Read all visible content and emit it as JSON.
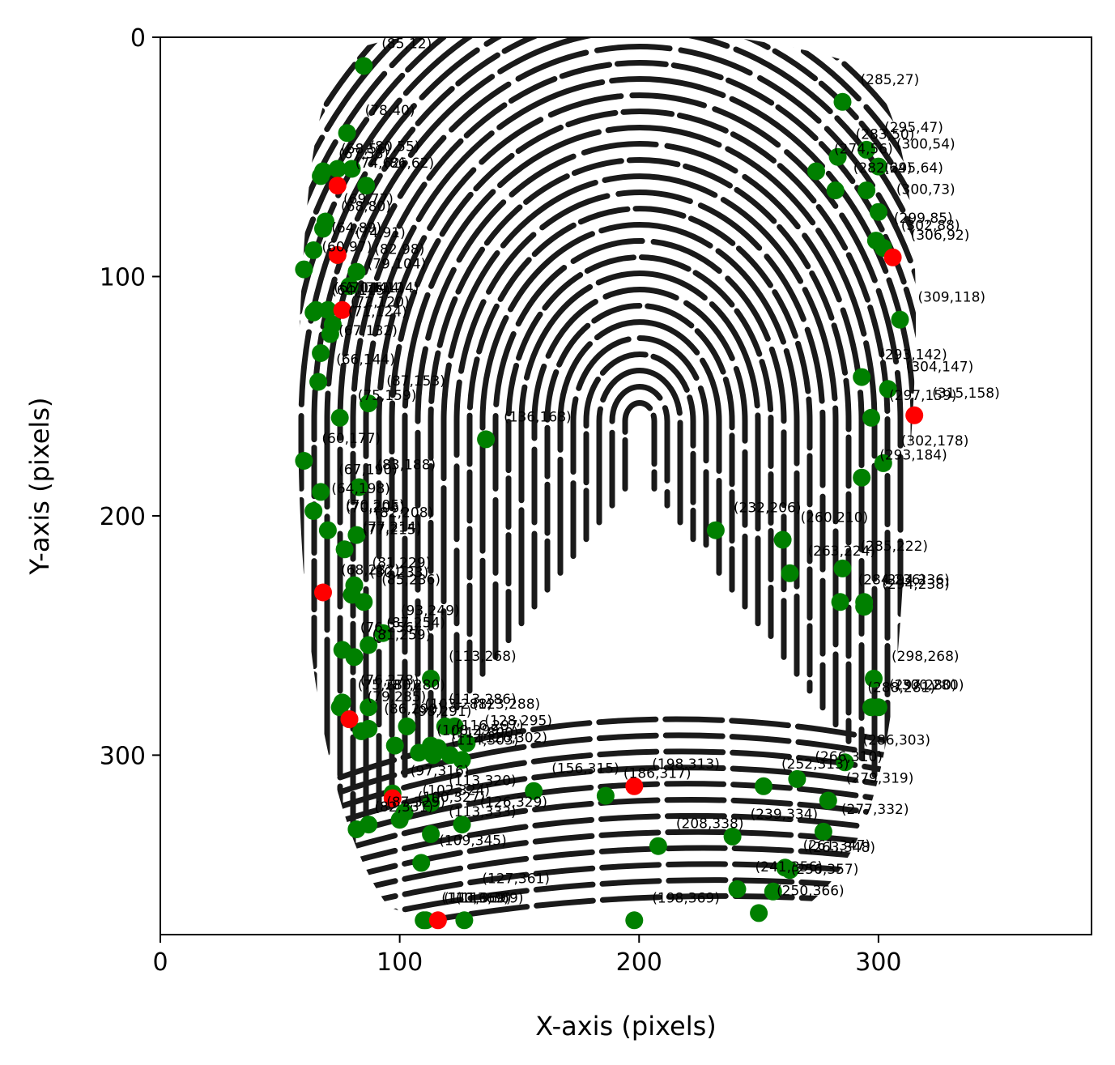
{
  "chart_data": {
    "type": "scatter",
    "title": "",
    "xlabel": "X-axis (pixels)",
    "ylabel": "Y-axis (pixels)",
    "xlim": [
      0,
      389
    ],
    "ylim": [
      375,
      0
    ],
    "y_inverted": true,
    "grid": false,
    "background_image": "fingerprint",
    "x_ticks": [
      0,
      100,
      200,
      300
    ],
    "y_ticks": [
      0,
      100,
      200,
      300
    ],
    "colors": {
      "green": "#008000",
      "red": "#ff0000"
    },
    "series": [
      {
        "color": "green",
        "points": [
          [
            85,
            12
          ],
          [
            285,
            27
          ],
          [
            78,
            40
          ],
          [
            295,
            47
          ],
          [
            283,
            50
          ],
          [
            300,
            54
          ],
          [
            274,
            56
          ],
          [
            80,
            55
          ],
          [
            68,
            56
          ],
          [
            67,
            58
          ],
          [
            74,
            55
          ],
          [
            86,
            62
          ],
          [
            282,
            64
          ],
          [
            295,
            64
          ],
          [
            300,
            73
          ],
          [
            68,
            80
          ],
          [
            69,
            77
          ],
          [
            299,
            85
          ],
          [
            302,
            88
          ],
          [
            64,
            89
          ],
          [
            74,
            91
          ],
          [
            60,
            97
          ],
          [
            82,
            98
          ],
          [
            79,
            104
          ],
          [
            65,
            114
          ],
          [
            64,
            115
          ],
          [
            70,
            114
          ],
          [
            72,
            120
          ],
          [
            71,
            124
          ],
          [
            309,
            118
          ],
          [
            67,
            132
          ],
          [
            66,
            144
          ],
          [
            293,
            142
          ],
          [
            304,
            147
          ],
          [
            297,
            159
          ],
          [
            87,
            153
          ],
          [
            75,
            159
          ],
          [
            136,
            168
          ],
          [
            60,
            177
          ],
          [
            302,
            178
          ],
          [
            293,
            184
          ],
          [
            67,
            190
          ],
          [
            83,
            188
          ],
          [
            64,
            198
          ],
          [
            70,
            206
          ],
          [
            82,
            208
          ],
          [
            77,
            214
          ],
          [
            232,
            206
          ],
          [
            260,
            210
          ],
          [
            263,
            224
          ],
          [
            285,
            222
          ],
          [
            284,
            236
          ],
          [
            294,
            236
          ],
          [
            294,
            238
          ],
          [
            81,
            229
          ],
          [
            80,
            233
          ],
          [
            85,
            236
          ],
          [
            93,
            249
          ],
          [
            76,
            256
          ],
          [
            87,
            254
          ],
          [
            81,
            259
          ],
          [
            113,
            268
          ],
          [
            298,
            268
          ],
          [
            76,
            278
          ],
          [
            75,
            280
          ],
          [
            87,
            280
          ],
          [
            297,
            280
          ],
          [
            300,
            280
          ],
          [
            79,
            285
          ],
          [
            84,
            290
          ],
          [
            87,
            289
          ],
          [
            98,
            296
          ],
          [
            103,
            288
          ],
          [
            113,
            296
          ],
          [
            119,
            288
          ],
          [
            123,
            288
          ],
          [
            128,
            295
          ],
          [
            108,
            299
          ],
          [
            114,
            300
          ],
          [
            116,
            297
          ],
          [
            121,
            300
          ],
          [
            126,
            302
          ],
          [
            286,
            303
          ],
          [
            266,
            310
          ],
          [
            252,
            313
          ],
          [
            279,
            319
          ],
          [
            97,
            316
          ],
          [
            113,
            320
          ],
          [
            156,
            315
          ],
          [
            186,
            317
          ],
          [
            102,
            324
          ],
          [
            100,
            327
          ],
          [
            87,
            329
          ],
          [
            82,
            331
          ],
          [
            113,
            333
          ],
          [
            126,
            329
          ],
          [
            239,
            334
          ],
          [
            277,
            332
          ],
          [
            208,
            338
          ],
          [
            109,
            345
          ],
          [
            261,
            347
          ],
          [
            263,
            348
          ],
          [
            241,
            356
          ],
          [
            256,
            357
          ],
          [
            110,
            369
          ],
          [
            111,
            369
          ],
          [
            127,
            369
          ],
          [
            198,
            369
          ],
          [
            250,
            366
          ]
        ]
      },
      {
        "color": "red",
        "points": [
          [
            74,
            62
          ],
          [
            74,
            91
          ],
          [
            76,
            114
          ],
          [
            306,
            92
          ],
          [
            315,
            158
          ],
          [
            68,
            232
          ],
          [
            79,
            285
          ],
          [
            97,
            318
          ],
          [
            198,
            313
          ],
          [
            116,
            369
          ]
        ]
      }
    ],
    "labels": [
      {
        "x": 85,
        "y": 12,
        "text": "(85,12)"
      },
      {
        "x": 285,
        "y": 27,
        "text": "(285,27)"
      },
      {
        "x": 78,
        "y": 40,
        "text": "(78,40)"
      },
      {
        "x": 295,
        "y": 47,
        "text": "(295,47)"
      },
      {
        "x": 283,
        "y": 50,
        "text": "(283,50)"
      },
      {
        "x": 300,
        "y": 54,
        "text": "(300,54)"
      },
      {
        "x": 274,
        "y": 56,
        "text": "(274,56)"
      },
      {
        "x": 80,
        "y": 55,
        "text": "(80,55)"
      },
      {
        "x": 68,
        "y": 56,
        "text": "(68,56)"
      },
      {
        "x": 67,
        "y": 58,
        "text": "(67,58)"
      },
      {
        "x": 74,
        "y": 62,
        "text": "(74,62)"
      },
      {
        "x": 86,
        "y": 62,
        "text": "(86,62)"
      },
      {
        "x": 282,
        "y": 64,
        "text": "(282,64)"
      },
      {
        "x": 295,
        "y": 64,
        "text": "(295,64)"
      },
      {
        "x": 300,
        "y": 73,
        "text": "(300,73)"
      },
      {
        "x": 69,
        "y": 77,
        "text": "(69,77)"
      },
      {
        "x": 68,
        "y": 80,
        "text": "(68,80)"
      },
      {
        "x": 299,
        "y": 85,
        "text": "(299,85)"
      },
      {
        "x": 302,
        "y": 88,
        "text": "(302,88)"
      },
      {
        "x": 64,
        "y": 89,
        "text": "(64,89)"
      },
      {
        "x": 74,
        "y": 91,
        "text": "(74,91)"
      },
      {
        "x": 306,
        "y": 92,
        "text": "(306,92)"
      },
      {
        "x": 60,
        "y": 97,
        "text": "(60,97)"
      },
      {
        "x": 82,
        "y": 98,
        "text": "(82,98)"
      },
      {
        "x": 79,
        "y": 104,
        "text": "(79,104)"
      },
      {
        "x": 65,
        "y": 114,
        "text": "(65,114)"
      },
      {
        "x": 64,
        "y": 115,
        "text": "(64,115)"
      },
      {
        "x": 70,
        "y": 114,
        "text": "(70,114)"
      },
      {
        "x": 76,
        "y": 114,
        "text": "(76,114)"
      },
      {
        "x": 72,
        "y": 120,
        "text": "(72,120)"
      },
      {
        "x": 71,
        "y": 124,
        "text": "(71,124)"
      },
      {
        "x": 309,
        "y": 118,
        "text": "(309,118)"
      },
      {
        "x": 67,
        "y": 132,
        "text": "(67,132)"
      },
      {
        "x": 66,
        "y": 144,
        "text": "(66,144)"
      },
      {
        "x": 293,
        "y": 142,
        "text": "(293,142)"
      },
      {
        "x": 304,
        "y": 147,
        "text": "(304,147)"
      },
      {
        "x": 87,
        "y": 153,
        "text": "(87,153)"
      },
      {
        "x": 297,
        "y": 159,
        "text": "(297,159)"
      },
      {
        "x": 315,
        "y": 158,
        "text": "(315,158)"
      },
      {
        "x": 75,
        "y": 159,
        "text": "(75,159)"
      },
      {
        "x": 136,
        "y": 168,
        "text": "(136,168)"
      },
      {
        "x": 60,
        "y": 177,
        "text": "(60,177)"
      },
      {
        "x": 302,
        "y": 178,
        "text": "(302,178)"
      },
      {
        "x": 293,
        "y": 184,
        "text": "(293,184)"
      },
      {
        "x": 67,
        "y": 190,
        "text": "(67,190)"
      },
      {
        "x": 83,
        "y": 188,
        "text": "(83,188)"
      },
      {
        "x": 64,
        "y": 198,
        "text": "(64,198)"
      },
      {
        "x": 70,
        "y": 206,
        "text": "(70,206)"
      },
      {
        "x": 70,
        "y": 205,
        "text": "(70,205)"
      },
      {
        "x": 82,
        "y": 208,
        "text": "(82,208)"
      },
      {
        "x": 77,
        "y": 214,
        "text": "(77,214)"
      },
      {
        "x": 77,
        "y": 215,
        "text": "(77,215)"
      },
      {
        "x": 232,
        "y": 206,
        "text": "(232,206)"
      },
      {
        "x": 260,
        "y": 210,
        "text": "(260,210)"
      },
      {
        "x": 263,
        "y": 224,
        "text": "(263,224)"
      },
      {
        "x": 285,
        "y": 222,
        "text": "(285,222)"
      },
      {
        "x": 284,
        "y": 236,
        "text": "(284,236)"
      },
      {
        "x": 294,
        "y": 236,
        "text": "(294,236)"
      },
      {
        "x": 294,
        "y": 238,
        "text": "(294,238)"
      },
      {
        "x": 81,
        "y": 229,
        "text": "(81,229)"
      },
      {
        "x": 68,
        "y": 232,
        "text": "(68,232)"
      },
      {
        "x": 80,
        "y": 233,
        "text": "(80,233)"
      },
      {
        "x": 85,
        "y": 236,
        "text": "(85,236)"
      },
      {
        "x": 93,
        "y": 249,
        "text": "(93,249)"
      },
      {
        "x": 76,
        "y": 256,
        "text": "(76,256)"
      },
      {
        "x": 87,
        "y": 254,
        "text": "(87,254)"
      },
      {
        "x": 81,
        "y": 259,
        "text": "(81,259)"
      },
      {
        "x": 113,
        "y": 268,
        "text": "(113,268)"
      },
      {
        "x": 298,
        "y": 268,
        "text": "(298,268)"
      },
      {
        "x": 76,
        "y": 278,
        "text": "(76,278)"
      },
      {
        "x": 75,
        "y": 280,
        "text": "(75,280)"
      },
      {
        "x": 87,
        "y": 280,
        "text": "(87,280)"
      },
      {
        "x": 297,
        "y": 280,
        "text": "(297,280)"
      },
      {
        "x": 300,
        "y": 280,
        "text": "(300,280)"
      },
      {
        "x": 288,
        "y": 281,
        "text": "(288,281)"
      },
      {
        "x": 79,
        "y": 285,
        "text": "(79,285)"
      },
      {
        "x": 86,
        "y": 290,
        "text": "(86,290)"
      },
      {
        "x": 98,
        "y": 291,
        "text": "(98,291)"
      },
      {
        "x": 103,
        "y": 288,
        "text": "(103,288)"
      },
      {
        "x": 113,
        "y": 286,
        "text": "(113,286)"
      },
      {
        "x": 123,
        "y": 288,
        "text": "(123,288)"
      },
      {
        "x": 128,
        "y": 295,
        "text": "(128,295)"
      },
      {
        "x": 108,
        "y": 299,
        "text": "(108,299)"
      },
      {
        "x": 114,
        "y": 300,
        "text": "(114,300)"
      },
      {
        "x": 116,
        "y": 297,
        "text": "(116,297)"
      },
      {
        "x": 114,
        "y": 303,
        "text": "(114,303)"
      },
      {
        "x": 126,
        "y": 302,
        "text": "(126,302)"
      },
      {
        "x": 286,
        "y": 303,
        "text": "(286,303)"
      },
      {
        "x": 266,
        "y": 310,
        "text": "(266,310)"
      },
      {
        "x": 252,
        "y": 313,
        "text": "(252,313)"
      },
      {
        "x": 279,
        "y": 319,
        "text": "(279,319)"
      },
      {
        "x": 97,
        "y": 316,
        "text": "(97,316)"
      },
      {
        "x": 113,
        "y": 320,
        "text": "(113,320)"
      },
      {
        "x": 156,
        "y": 315,
        "text": "(156,315)"
      },
      {
        "x": 198,
        "y": 313,
        "text": "(198,313)"
      },
      {
        "x": 186,
        "y": 317,
        "text": "(186,317)"
      },
      {
        "x": 102,
        "y": 324,
        "text": "(102,324)"
      },
      {
        "x": 100,
        "y": 327,
        "text": "(100,327)"
      },
      {
        "x": 87,
        "y": 329,
        "text": "(87,329)"
      },
      {
        "x": 82,
        "y": 331,
        "text": "(82,331)"
      },
      {
        "x": 113,
        "y": 333,
        "text": "(113,333)"
      },
      {
        "x": 126,
        "y": 329,
        "text": "(126,329)"
      },
      {
        "x": 239,
        "y": 334,
        "text": "(239,334)"
      },
      {
        "x": 277,
        "y": 332,
        "text": "(277,332)"
      },
      {
        "x": 208,
        "y": 338,
        "text": "(208,338)"
      },
      {
        "x": 109,
        "y": 345,
        "text": "(109,345)"
      },
      {
        "x": 261,
        "y": 347,
        "text": "(261,347)"
      },
      {
        "x": 263,
        "y": 348,
        "text": "(263,348)"
      },
      {
        "x": 241,
        "y": 356,
        "text": "(241,356)"
      },
      {
        "x": 256,
        "y": 357,
        "text": "(256,357)"
      },
      {
        "x": 110,
        "y": 369,
        "text": "(110,369)"
      },
      {
        "x": 111,
        "y": 369,
        "text": "(111,369)"
      },
      {
        "x": 116,
        "y": 369,
        "text": "(116,369)"
      },
      {
        "x": 127,
        "y": 361,
        "text": "(127,361)"
      },
      {
        "x": 198,
        "y": 369,
        "text": "(198,369)"
      },
      {
        "x": 250,
        "y": 366,
        "text": "(250,366)"
      }
    ]
  }
}
